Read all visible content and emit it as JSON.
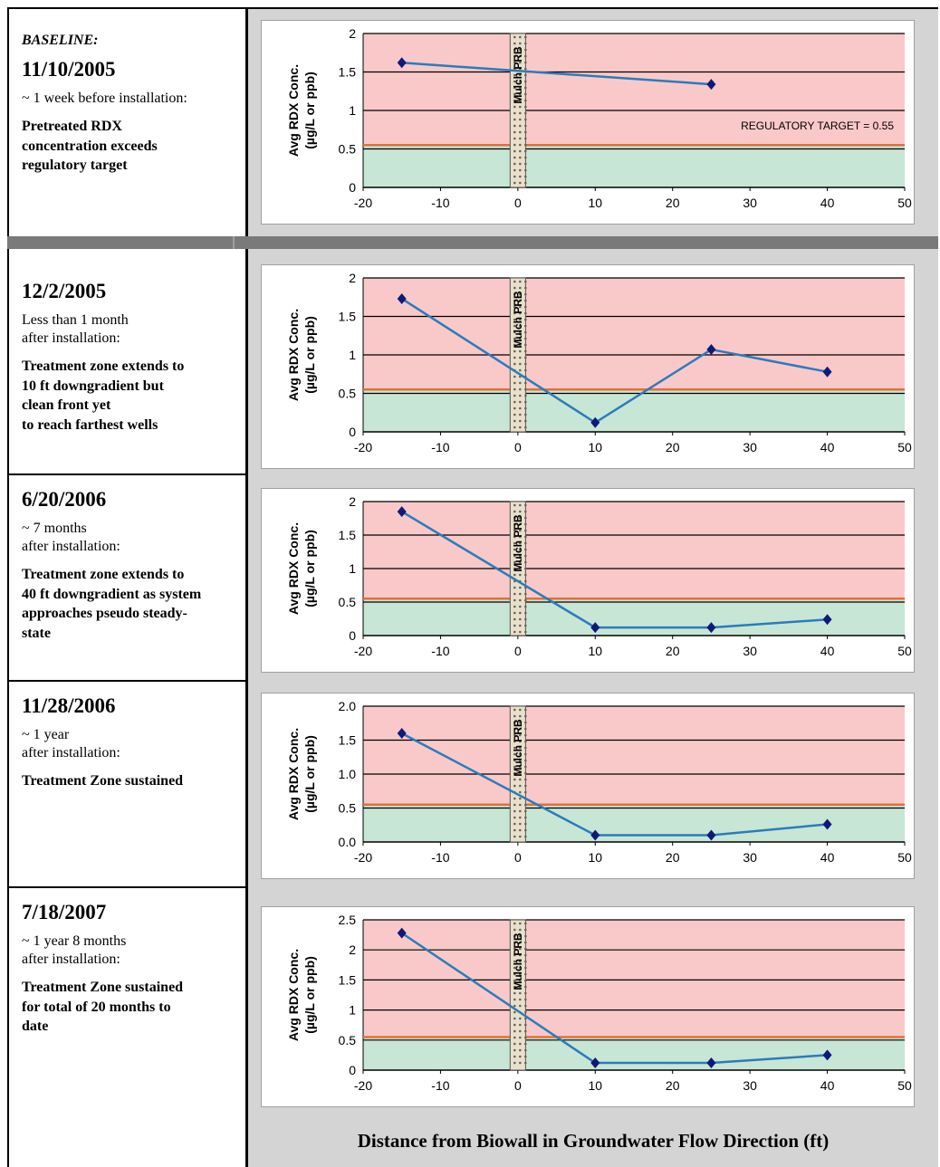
{
  "colors": {
    "exceed_zone": "#f9c9c9",
    "clean_zone": "#c8e6d5",
    "target_line": "#e0703a",
    "data_line": "#2b7bbd",
    "marker": "#0d1a7a",
    "prb_fill": "#e8e0cc",
    "panel_bg": "#d4d4d4"
  },
  "rows": [
    {
      "baseline_label": "BASELINE:",
      "date": "11/10/2005",
      "subtitle": "~ 1 week before installation:",
      "description": "Pretreated RDX\nconcentration exceeds\nregulatory target"
    },
    {
      "date": "12/2/2005",
      "subtitle": "Less than 1 month\nafter installation:",
      "description": "Treatment zone extends to\n10 ft downgradient but\nclean front yet\nto reach farthest wells"
    },
    {
      "date": "6/20/2006",
      "subtitle": "~ 7 months\nafter installation:",
      "description": "Treatment zone extends to\n40 ft downgradient as system\napproaches pseudo steady-\nstate"
    },
    {
      "date": "11/28/2006",
      "subtitle": "~ 1 year\nafter installation:",
      "description": "Treatment Zone sustained"
    },
    {
      "date": "7/18/2007",
      "subtitle": "~ 1 year 8 months\nafter installation:",
      "description": "Treatment Zone sustained\nfor total of 20 months to\ndate"
    }
  ],
  "shared_xlabel": "Distance from Biowall in Groundwater Flow Direction (ft)",
  "chart_data": [
    {
      "type": "line",
      "ylabel": "Avg RDX Conc.\n(µg/L or ppb)",
      "prb_label": "Mulch PRB",
      "annotation": "REGULATORY TARGET = 0.55",
      "regulatory_target": 0.55,
      "xlim": [
        -20,
        50
      ],
      "ylim": [
        0,
        2
      ],
      "xticks": [
        "-20",
        "-10",
        "0",
        "10",
        "20",
        "30",
        "40",
        "50"
      ],
      "yticks": [
        "0",
        "0.5",
        "1",
        "1.5",
        "2"
      ],
      "ytick_values": [
        0,
        0.5,
        1,
        1.5,
        2
      ],
      "series": [
        {
          "x": [
            -15,
            25
          ],
          "y": [
            1.62,
            1.34
          ]
        }
      ]
    },
    {
      "type": "line",
      "ylabel": "Avg RDX Conc.\n(µg/L or ppb)",
      "prb_label": "Mulch PRB",
      "regulatory_target": 0.55,
      "xlim": [
        -20,
        50
      ],
      "ylim": [
        0,
        2
      ],
      "xticks": [
        "-20",
        "-10",
        "0",
        "10",
        "20",
        "30",
        "40",
        "50"
      ],
      "yticks": [
        "0",
        "0.5",
        "1",
        "1.5",
        "2"
      ],
      "ytick_values": [
        0,
        0.5,
        1,
        1.5,
        2
      ],
      "series": [
        {
          "x": [
            -15,
            10,
            25,
            40
          ],
          "y": [
            1.73,
            0.12,
            1.07,
            0.78
          ]
        }
      ]
    },
    {
      "type": "line",
      "ylabel": "Avg RDX Conc.\n(µg/L or ppb)",
      "prb_label": "Mulch PRB",
      "regulatory_target": 0.55,
      "xlim": [
        -20,
        50
      ],
      "ylim": [
        0,
        2
      ],
      "xticks": [
        "-20",
        "-10",
        "0",
        "10",
        "20",
        "30",
        "40",
        "50"
      ],
      "yticks": [
        "0",
        "0.5",
        "1",
        "1.5",
        "2"
      ],
      "ytick_values": [
        0,
        0.5,
        1,
        1.5,
        2
      ],
      "series": [
        {
          "x": [
            -15,
            10,
            25,
            40
          ],
          "y": [
            1.85,
            0.12,
            0.12,
            0.24
          ]
        }
      ]
    },
    {
      "type": "line",
      "ylabel": "Avg RDX Conc.\n(µg/L or ppb)",
      "prb_label": "Mulch PRB",
      "regulatory_target": 0.55,
      "xlim": [
        -20,
        50
      ],
      "ylim": [
        0,
        2
      ],
      "xticks": [
        "-20",
        "-10",
        "0",
        "10",
        "20",
        "30",
        "40",
        "50"
      ],
      "yticks": [
        "0.0",
        "0.5",
        "1.0",
        "1.5",
        "2.0"
      ],
      "ytick_values": [
        0,
        0.5,
        1,
        1.5,
        2
      ],
      "series": [
        {
          "x": [
            -15,
            10,
            25,
            40
          ],
          "y": [
            1.6,
            0.1,
            0.1,
            0.26
          ]
        }
      ]
    },
    {
      "type": "line",
      "ylabel": "Avg RDX Conc.\n(µg/L or ppb)",
      "prb_label": "Mulch PRB",
      "regulatory_target": 0.55,
      "xlim": [
        -20,
        50
      ],
      "ylim": [
        0,
        2.5
      ],
      "xticks": [
        "-20",
        "-10",
        "0",
        "10",
        "20",
        "30",
        "40",
        "50"
      ],
      "yticks": [
        "0",
        "0.5",
        "1",
        "1.5",
        "2",
        "2.5"
      ],
      "ytick_values": [
        0,
        0.5,
        1,
        1.5,
        2,
        2.5
      ],
      "series": [
        {
          "x": [
            -15,
            10,
            25,
            40
          ],
          "y": [
            2.28,
            0.12,
            0.12,
            0.25
          ]
        }
      ]
    }
  ]
}
